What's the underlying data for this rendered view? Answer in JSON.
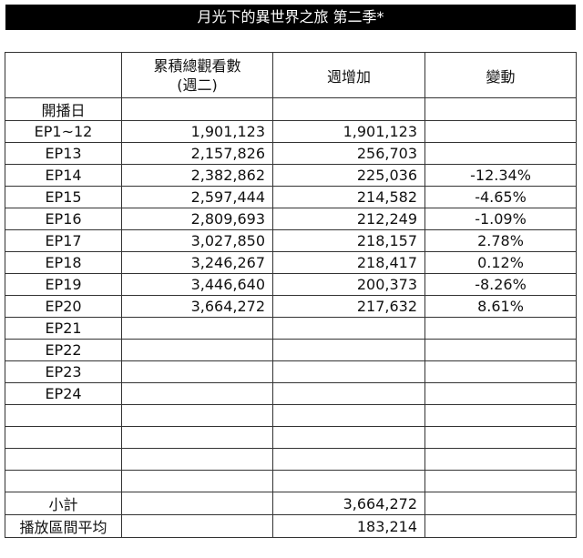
{
  "title": "月光下的異世界之旅 第二季*",
  "columns": {
    "cumulative_line1": "累積總觀看數",
    "cumulative_line2": "(週二)",
    "weekly": "週增加",
    "change": "變動"
  },
  "rows": [
    {
      "label": "開播日",
      "cumulative": "",
      "weekly": "",
      "change": ""
    },
    {
      "label": "EP1~12",
      "cumulative": "1,901,123",
      "weekly": "1,901,123",
      "change": ""
    },
    {
      "label": "EP13",
      "cumulative": "2,157,826",
      "weekly": "256,703",
      "change": ""
    },
    {
      "label": "EP14",
      "cumulative": "2,382,862",
      "weekly": "225,036",
      "change": "-12.34%"
    },
    {
      "label": "EP15",
      "cumulative": "2,597,444",
      "weekly": "214,582",
      "change": "-4.65%"
    },
    {
      "label": "EP16",
      "cumulative": "2,809,693",
      "weekly": "212,249",
      "change": "-1.09%"
    },
    {
      "label": "EP17",
      "cumulative": "3,027,850",
      "weekly": "218,157",
      "change": "2.78%"
    },
    {
      "label": "EP18",
      "cumulative": "3,246,267",
      "weekly": "218,417",
      "change": "0.12%"
    },
    {
      "label": "EP19",
      "cumulative": "3,446,640",
      "weekly": "200,373",
      "change": "-8.26%"
    },
    {
      "label": "EP20",
      "cumulative": "3,664,272",
      "weekly": "217,632",
      "change": "8.61%"
    },
    {
      "label": "EP21",
      "cumulative": "",
      "weekly": "",
      "change": ""
    },
    {
      "label": "EP22",
      "cumulative": "",
      "weekly": "",
      "change": ""
    },
    {
      "label": "EP23",
      "cumulative": "",
      "weekly": "",
      "change": ""
    },
    {
      "label": "EP24",
      "cumulative": "",
      "weekly": "",
      "change": ""
    },
    {
      "label": "",
      "cumulative": "",
      "weekly": "",
      "change": ""
    },
    {
      "label": "",
      "cumulative": "",
      "weekly": "",
      "change": ""
    },
    {
      "label": "",
      "cumulative": "",
      "weekly": "",
      "change": ""
    },
    {
      "label": "",
      "cumulative": "",
      "weekly": "",
      "change": ""
    }
  ],
  "subtotal": {
    "label": "小計",
    "weekly": "3,664,272"
  },
  "average": {
    "label": "播放區間平均",
    "weekly": "183,214"
  }
}
